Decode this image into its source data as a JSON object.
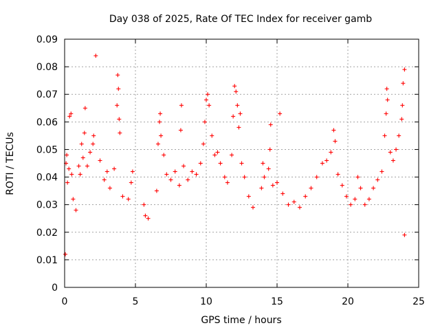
{
  "chart_data": {
    "type": "scatter",
    "title": "Day 038 of 2025, Rate Of TEC Index for receiver gamb",
    "xlabel": "GPS time / hours",
    "ylabel": "ROTI / TECUs",
    "xlim": [
      0,
      25
    ],
    "ylim": [
      0,
      0.09
    ],
    "x_ticks": [
      "0",
      "5",
      "10",
      "15",
      "20",
      "25"
    ],
    "y_ticks": [
      "0",
      "0.01",
      "0.02",
      "0.03",
      "0.04",
      "0.05",
      "0.06",
      "0.07",
      "0.08",
      "0.09"
    ],
    "grid": true,
    "marker": "plus",
    "color": "#ff0000",
    "series": [
      {
        "points": [
          [
            0.05,
            0.012
          ],
          [
            0.1,
            0.045
          ],
          [
            0.15,
            0.048
          ],
          [
            0.2,
            0.038
          ],
          [
            0.3,
            0.043
          ],
          [
            0.35,
            0.062
          ],
          [
            0.45,
            0.063
          ],
          [
            0.5,
            0.041
          ],
          [
            0.6,
            0.032
          ],
          [
            0.8,
            0.028
          ],
          [
            1.0,
            0.044
          ],
          [
            1.1,
            0.041
          ],
          [
            1.2,
            0.052
          ],
          [
            1.3,
            0.047
          ],
          [
            1.4,
            0.056
          ],
          [
            1.45,
            0.065
          ],
          [
            1.6,
            0.044
          ],
          [
            1.8,
            0.049
          ],
          [
            2.0,
            0.052
          ],
          [
            2.05,
            0.055
          ],
          [
            2.2,
            0.084
          ],
          [
            2.5,
            0.046
          ],
          [
            2.8,
            0.039
          ],
          [
            3.0,
            0.042
          ],
          [
            3.2,
            0.036
          ],
          [
            3.5,
            0.043
          ],
          [
            3.7,
            0.066
          ],
          [
            3.75,
            0.077
          ],
          [
            3.8,
            0.072
          ],
          [
            3.85,
            0.061
          ],
          [
            3.9,
            0.056
          ],
          [
            4.1,
            0.033
          ],
          [
            4.5,
            0.032
          ],
          [
            4.7,
            0.038
          ],
          [
            4.8,
            0.042
          ],
          [
            5.6,
            0.03
          ],
          [
            5.7,
            0.026
          ],
          [
            5.9,
            0.025
          ],
          [
            6.5,
            0.035
          ],
          [
            6.6,
            0.052
          ],
          [
            6.7,
            0.06
          ],
          [
            6.75,
            0.063
          ],
          [
            6.8,
            0.055
          ],
          [
            7.0,
            0.048
          ],
          [
            7.2,
            0.041
          ],
          [
            7.5,
            0.039
          ],
          [
            7.8,
            0.042
          ],
          [
            8.1,
            0.037
          ],
          [
            8.2,
            0.057
          ],
          [
            8.25,
            0.066
          ],
          [
            8.4,
            0.044
          ],
          [
            8.7,
            0.039
          ],
          [
            9.0,
            0.042
          ],
          [
            9.3,
            0.041
          ],
          [
            9.6,
            0.045
          ],
          [
            9.8,
            0.052
          ],
          [
            9.9,
            0.06
          ],
          [
            10.0,
            0.068
          ],
          [
            10.1,
            0.07
          ],
          [
            10.2,
            0.066
          ],
          [
            10.4,
            0.055
          ],
          [
            10.6,
            0.048
          ],
          [
            10.8,
            0.049
          ],
          [
            11.0,
            0.045
          ],
          [
            11.3,
            0.04
          ],
          [
            11.5,
            0.038
          ],
          [
            11.8,
            0.048
          ],
          [
            11.9,
            0.062
          ],
          [
            12.0,
            0.073
          ],
          [
            12.1,
            0.071
          ],
          [
            12.2,
            0.066
          ],
          [
            12.3,
            0.058
          ],
          [
            12.4,
            0.063
          ],
          [
            12.5,
            0.045
          ],
          [
            12.7,
            0.04
          ],
          [
            13.0,
            0.033
          ],
          [
            13.3,
            0.029
          ],
          [
            13.9,
            0.036
          ],
          [
            14.0,
            0.045
          ],
          [
            14.1,
            0.04
          ],
          [
            14.4,
            0.043
          ],
          [
            14.5,
            0.05
          ],
          [
            14.55,
            0.059
          ],
          [
            14.7,
            0.037
          ],
          [
            15.0,
            0.038
          ],
          [
            15.2,
            0.063
          ],
          [
            15.4,
            0.034
          ],
          [
            15.8,
            0.03
          ],
          [
            16.2,
            0.031
          ],
          [
            16.6,
            0.029
          ],
          [
            17.0,
            0.033
          ],
          [
            17.4,
            0.036
          ],
          [
            17.8,
            0.04
          ],
          [
            18.2,
            0.045
          ],
          [
            18.5,
            0.046
          ],
          [
            18.8,
            0.049
          ],
          [
            19.0,
            0.057
          ],
          [
            19.1,
            0.053
          ],
          [
            19.3,
            0.041
          ],
          [
            19.6,
            0.037
          ],
          [
            19.9,
            0.033
          ],
          [
            20.2,
            0.03
          ],
          [
            20.5,
            0.032
          ],
          [
            20.7,
            0.04
          ],
          [
            20.9,
            0.036
          ],
          [
            21.2,
            0.03
          ],
          [
            21.5,
            0.032
          ],
          [
            21.8,
            0.036
          ],
          [
            22.1,
            0.039
          ],
          [
            22.4,
            0.042
          ],
          [
            22.6,
            0.055
          ],
          [
            22.7,
            0.063
          ],
          [
            22.75,
            0.072
          ],
          [
            22.8,
            0.068
          ],
          [
            23.0,
            0.049
          ],
          [
            23.2,
            0.046
          ],
          [
            23.4,
            0.05
          ],
          [
            23.6,
            0.055
          ],
          [
            23.8,
            0.061
          ],
          [
            23.85,
            0.066
          ],
          [
            23.9,
            0.074
          ],
          [
            24.0,
            0.079
          ],
          [
            24.0,
            0.019
          ]
        ]
      }
    ]
  }
}
